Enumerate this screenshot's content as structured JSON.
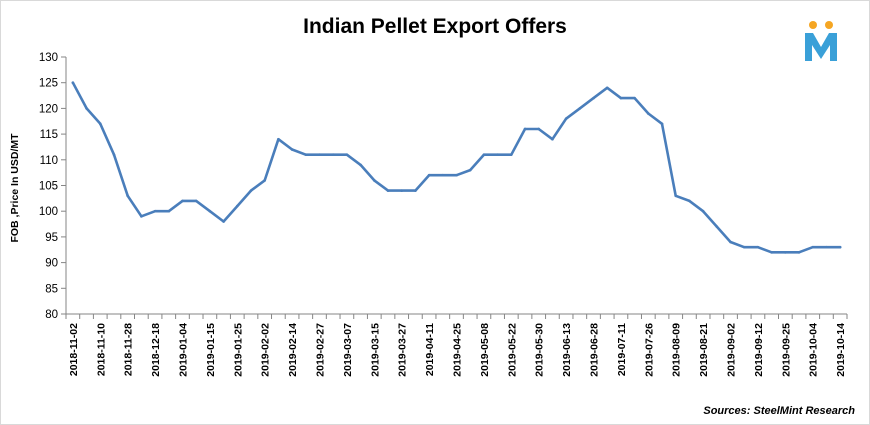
{
  "title": "Indian Pellet Export Offers",
  "source": "Sources: SteelMint Research",
  "logo": {
    "icon": "steelmint-m-logo",
    "colors": [
      "#f5a623",
      "#3aa0d8"
    ]
  },
  "chart_data": {
    "type": "line",
    "title": "Indian Pellet Export Offers",
    "xlabel": "",
    "ylabel": "FOB ,Price In USD/MT",
    "ylim": [
      80,
      130
    ],
    "yticks": [
      80,
      85,
      90,
      95,
      100,
      105,
      110,
      115,
      120,
      125,
      130
    ],
    "grid": false,
    "legend": "none",
    "line_color": "#4a7ebb",
    "tick_labels": [
      "2018-11-02",
      "2018-11-10",
      "2018-11-28",
      "2018-12-18",
      "2019-01-04",
      "2019-01-15",
      "2019-01-25",
      "2019-02-02",
      "2019-02-14",
      "2019-02-27",
      "2019-03-07",
      "2019-03-15",
      "2019-03-27",
      "2019-04-11",
      "2019-04-25",
      "2019-05-08",
      "2019-05-22",
      "2019-05-30",
      "2019-06-13",
      "2019-06-28",
      "2019-07-11",
      "2019-07-26",
      "2019-08-09",
      "2019-08-21",
      "2019-09-02",
      "2019-09-12",
      "2019-09-25",
      "2019-10-04",
      "2019-10-14"
    ],
    "values": [
      125,
      120,
      117,
      111,
      103,
      99,
      100,
      100,
      102,
      102,
      100,
      98,
      101,
      104,
      106,
      114,
      112,
      111,
      111,
      111,
      111,
      109,
      106,
      104,
      104,
      104,
      107,
      107,
      107,
      108,
      111,
      111,
      111,
      116,
      116,
      114,
      118,
      120,
      122,
      124,
      122,
      122,
      119,
      117,
      103,
      102,
      100,
      97,
      94,
      93,
      93,
      92,
      92,
      92,
      93,
      93,
      93
    ]
  }
}
